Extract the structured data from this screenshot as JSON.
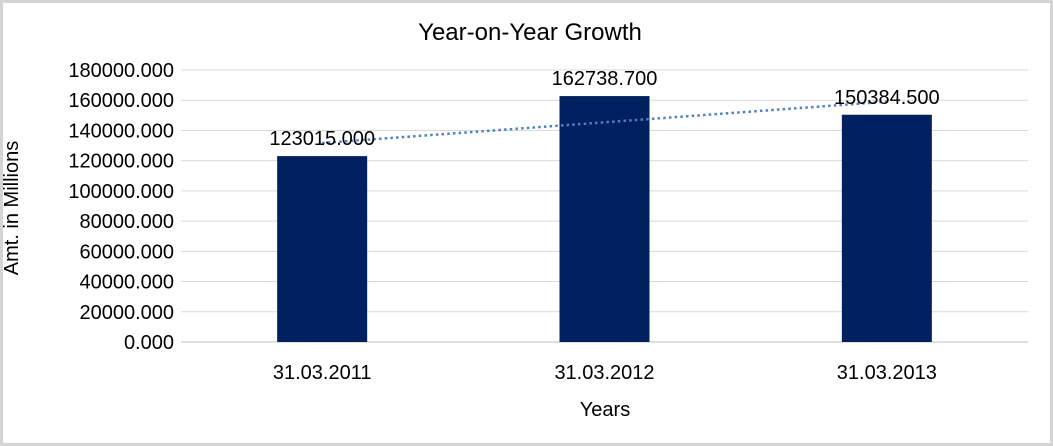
{
  "chart_data": {
    "type": "bar",
    "title": "Year-on-Year Growth",
    "categories": [
      "31.03.2011",
      "31.03.2012",
      "31.03.2013"
    ],
    "series": [
      {
        "name": "Amt. in Millions",
        "values": [
          123015.0,
          162738.7,
          150384.5
        ]
      }
    ],
    "data_labels": [
      "123015.000",
      "162738.700",
      "150384.500"
    ],
    "xlabel": "Years",
    "ylabel": "Amt. in Millions",
    "ylim": [
      0,
      180000
    ],
    "ytick_interval": 20000,
    "ytick_labels": [
      "0.000",
      "20000.000",
      "40000.000",
      "60000.000",
      "80000.000",
      "100000.000",
      "120000.000",
      "140000.000",
      "160000.000",
      "180000.000"
    ],
    "grid": true,
    "legend": "none",
    "trendline": {
      "type": "linear",
      "style": "dotted"
    }
  },
  "colors": {
    "bar_fill": "#002060",
    "trendline": "#4f81bd",
    "gridline": "#d9d9d9",
    "axis_line": "#bfbfbf",
    "text": "#000000",
    "frame_border": "#d4d4d4",
    "background": "#ffffff"
  }
}
